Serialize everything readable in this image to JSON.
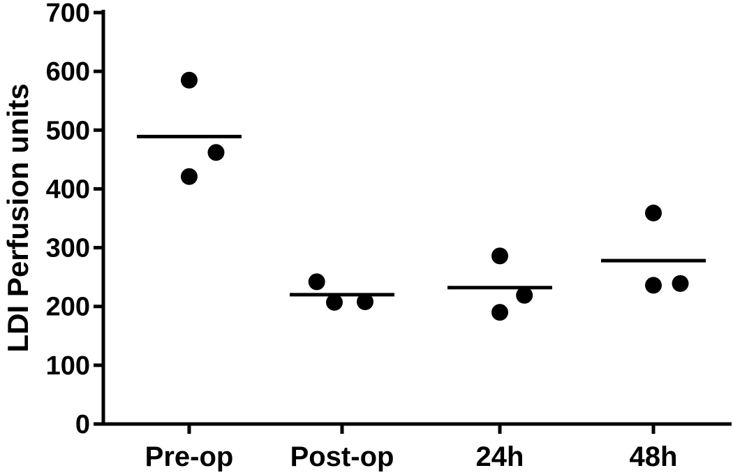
{
  "chart_data": {
    "type": "scatter",
    "title": "",
    "xlabel": "",
    "ylabel": "LDI Perfusion units",
    "ylim": [
      0,
      700
    ],
    "yticks": [
      0,
      100,
      200,
      300,
      400,
      500,
      600,
      700
    ],
    "grid": false,
    "legend": "none",
    "categories": [
      "Pre-op",
      "Post-op",
      "24h",
      "48h"
    ],
    "points": [
      [
        {
          "offset": 0.0,
          "value": 585
        },
        {
          "offset": 0.35,
          "value": 462
        },
        {
          "offset": 0.0,
          "value": 421
        }
      ],
      [
        {
          "offset": -0.33,
          "value": 242
        },
        {
          "offset": -0.1,
          "value": 207
        },
        {
          "offset": 0.3,
          "value": 208
        }
      ],
      [
        {
          "offset": 0.0,
          "value": 286
        },
        {
          "offset": 0.32,
          "value": 219
        },
        {
          "offset": 0.0,
          "value": 190
        }
      ],
      [
        {
          "offset": 0.0,
          "value": 359
        },
        {
          "offset": 0.0,
          "value": 236
        },
        {
          "offset": 0.35,
          "value": 239
        }
      ]
    ],
    "means": [
      489,
      220,
      232,
      278
    ],
    "colors": {
      "axis": "#000000",
      "marker": "#000000",
      "mean_line": "#000000"
    }
  }
}
